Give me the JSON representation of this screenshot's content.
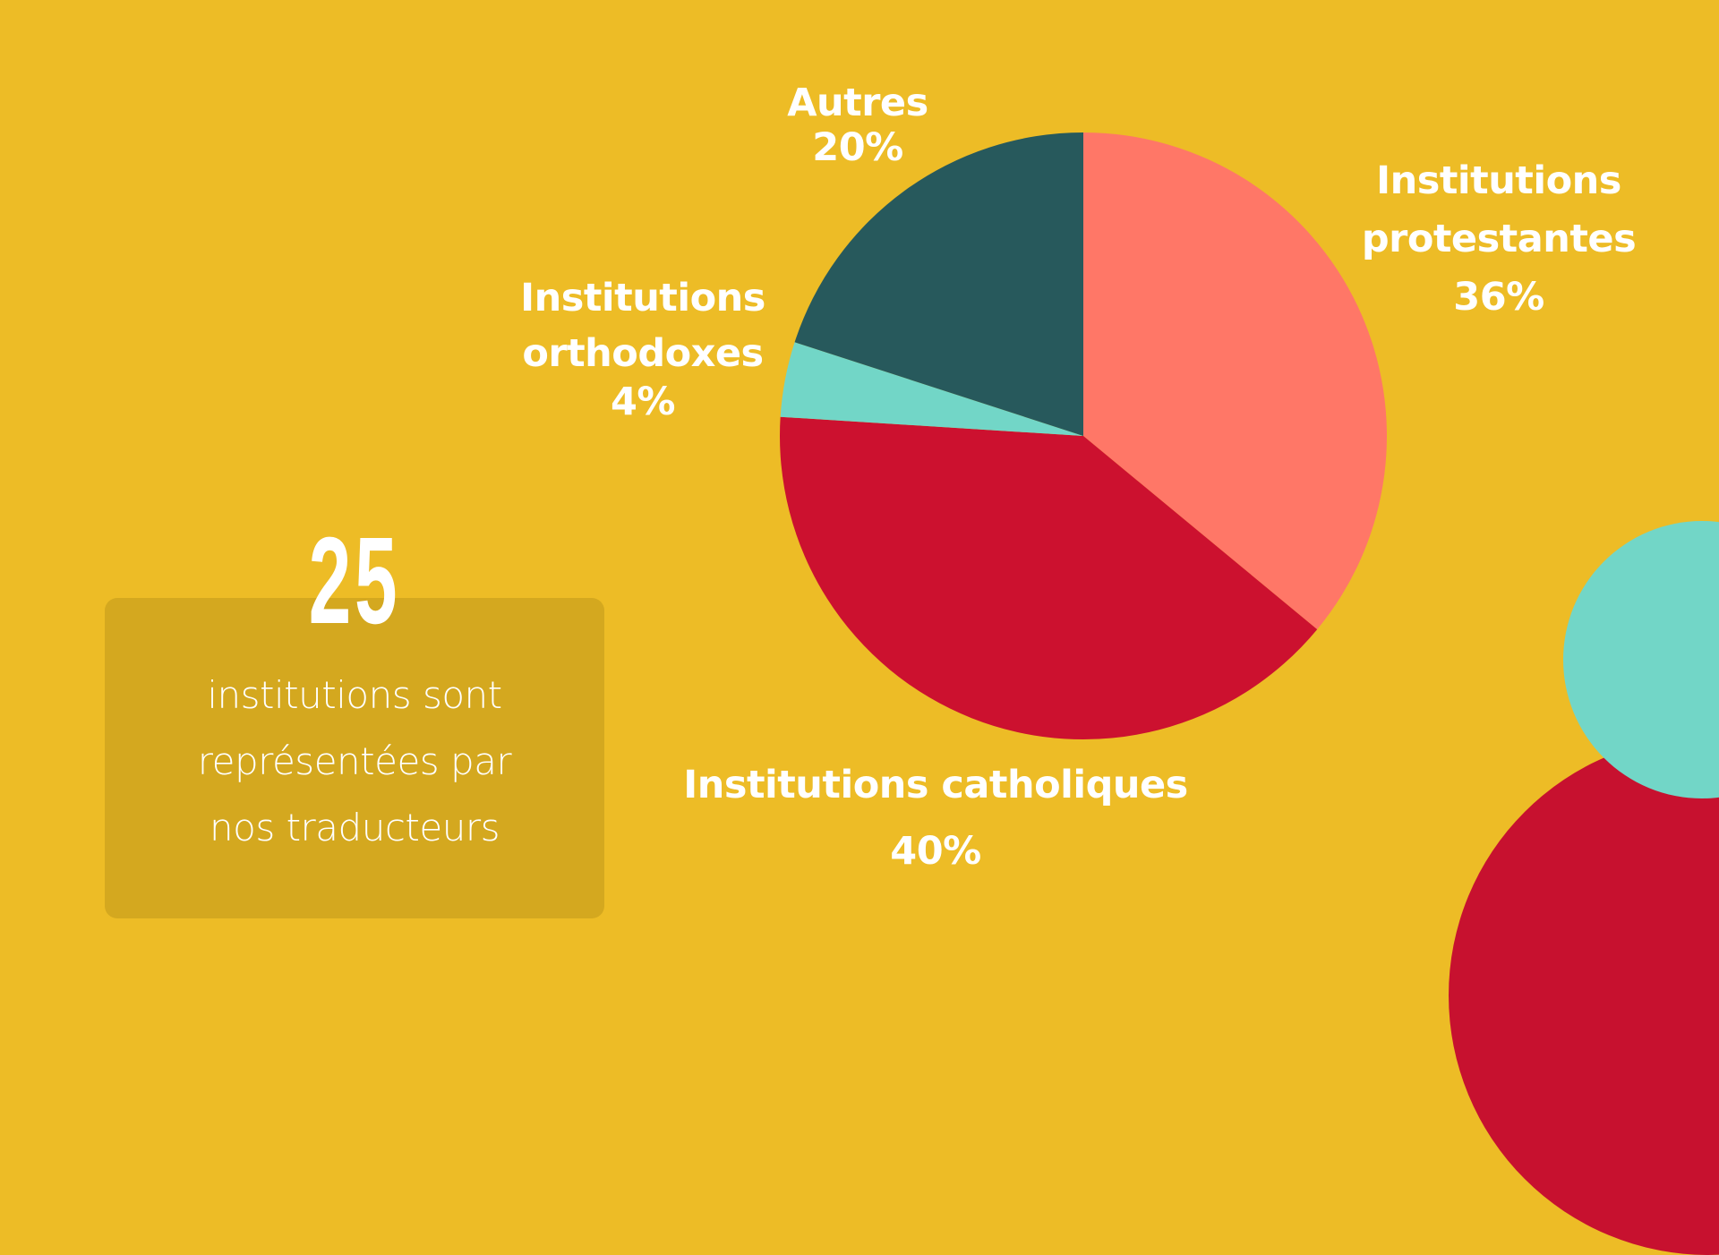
{
  "colors": {
    "background": "#EDBC26",
    "protestantes": "#FF7767",
    "catholiques": "#CC112F",
    "orthodoxes": "#72D6C7",
    "autres": "#27595C",
    "stat_box": "#D4A81F",
    "deco_teal": "#72D6C7",
    "deco_red": "#C7112F",
    "text": "#FFFFFF"
  },
  "labels": {
    "protestantes": {
      "line1": "Institutions",
      "line2": "protestantes",
      "pct": "36%"
    },
    "catholiques": {
      "line1": "Institutions catholiques",
      "pct": "40%"
    },
    "orthodoxes": {
      "line1": "Institutions",
      "line2": "orthodoxes",
      "pct": "4%"
    },
    "autres": {
      "line1": "Autres",
      "pct": "20%"
    }
  },
  "stat": {
    "number": "25",
    "line1": "institutions sont",
    "line2": "représentées par",
    "line3": "nos traducteurs"
  },
  "chart_data": {
    "type": "pie",
    "title": "",
    "categories": [
      "Institutions protestantes",
      "Institutions catholiques",
      "Institutions orthodoxes",
      "Autres"
    ],
    "values": [
      36,
      40,
      4,
      20
    ],
    "unit": "%",
    "colors": [
      "#FF7767",
      "#CC112F",
      "#72D6C7",
      "#27595C"
    ],
    "start_angle": "12 o'clock, clockwise",
    "legend": "none (direct labels)",
    "annotation": "25 institutions sont représentées par nos traducteurs"
  }
}
